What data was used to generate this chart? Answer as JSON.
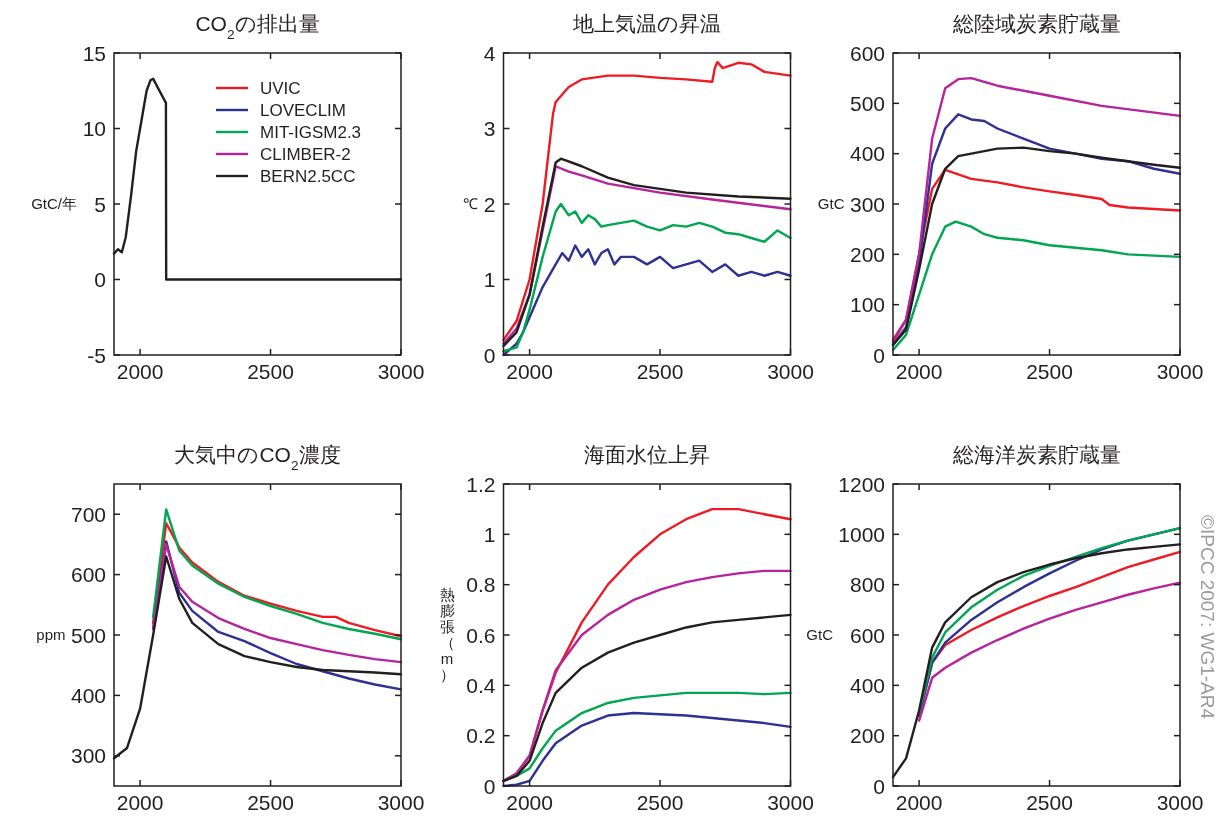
{
  "chart_data": [
    {
      "type": "line",
      "title": "CO$_{2}$の排出量",
      "ylabel": "GtC/年",
      "xlim": [
        1900,
        3000
      ],
      "xticks": [
        2000,
        2500,
        3000
      ],
      "ylim": [
        -5,
        15
      ],
      "yticks": [
        -5,
        0,
        5,
        10,
        15
      ],
      "legend": "top right",
      "series": [
        {
          "name": "UVIC",
          "color": "#ed1c24"
        },
        {
          "name": "LOVECLIM",
          "color": "#2e3192"
        },
        {
          "name": "MIT-IGSM2.3",
          "color": "#00a651"
        },
        {
          "name": "CLIMBER-2",
          "color": "#b5249b"
        },
        {
          "name": "BERN2.5CC",
          "color": "#231f20",
          "x": [
            1900,
            1915,
            1930,
            1945,
            1965,
            1985,
            2005,
            2025,
            2040,
            2050,
            2065,
            2099,
            2100,
            3000
          ],
          "values": [
            1.7,
            2.0,
            1.8,
            2.8,
            5.5,
            8.5,
            10.5,
            12.5,
            13.2,
            13.3,
            12.8,
            11.7,
            0,
            0
          ]
        }
      ]
    },
    {
      "type": "line",
      "title": "地上気温の昇温",
      "ylabel": "℃",
      "xlim": [
        1900,
        3000
      ],
      "xticks": [
        2000,
        2500,
        3000
      ],
      "ylim": [
        0,
        4
      ],
      "yticks": [
        0,
        1,
        2,
        3,
        4
      ],
      "series": [
        {
          "color": "#ed1c24",
          "x": [
            1900,
            1950,
            2000,
            2050,
            2090,
            2100,
            2150,
            2200,
            2300,
            2400,
            2500,
            2600,
            2700,
            2710,
            2720,
            2740,
            2800,
            2850,
            2900,
            3000
          ],
          "values": [
            0.2,
            0.45,
            1.0,
            2.0,
            3.2,
            3.35,
            3.55,
            3.65,
            3.7,
            3.7,
            3.67,
            3.65,
            3.62,
            3.8,
            3.88,
            3.8,
            3.87,
            3.85,
            3.75,
            3.7
          ]
        },
        {
          "color": "#2e3192",
          "x": [
            1900,
            1950,
            1975,
            2000,
            2050,
            2100,
            2125,
            2150,
            2175,
            2200,
            2225,
            2250,
            2275,
            2300,
            2325,
            2350,
            2400,
            2450,
            2500,
            2550,
            2600,
            2650,
            2700,
            2750,
            2800,
            2850,
            2900,
            2950,
            3000
          ],
          "values": [
            0.0,
            0.15,
            0.3,
            0.5,
            0.9,
            1.2,
            1.35,
            1.25,
            1.45,
            1.3,
            1.4,
            1.2,
            1.35,
            1.4,
            1.2,
            1.3,
            1.3,
            1.2,
            1.3,
            1.15,
            1.2,
            1.25,
            1.1,
            1.2,
            1.05,
            1.1,
            1.05,
            1.1,
            1.05
          ]
        },
        {
          "color": "#00a651",
          "x": [
            1900,
            1950,
            1975,
            2000,
            2050,
            2100,
            2120,
            2150,
            2175,
            2200,
            2225,
            2250,
            2275,
            2300,
            2350,
            2400,
            2450,
            2500,
            2550,
            2600,
            2650,
            2700,
            2750,
            2800,
            2850,
            2900,
            2950,
            3000
          ],
          "values": [
            0.05,
            0.1,
            0.3,
            0.6,
            1.3,
            1.9,
            2.0,
            1.85,
            1.9,
            1.75,
            1.85,
            1.8,
            1.7,
            1.72,
            1.75,
            1.78,
            1.7,
            1.65,
            1.72,
            1.7,
            1.75,
            1.7,
            1.62,
            1.6,
            1.55,
            1.5,
            1.65,
            1.55
          ]
        },
        {
          "color": "#b5249b",
          "x": [
            1900,
            1950,
            2000,
            2050,
            2100,
            2150,
            2200,
            2300,
            2500,
            2700,
            3000
          ],
          "values": [
            0.15,
            0.35,
            0.8,
            1.65,
            2.5,
            2.43,
            2.38,
            2.27,
            2.15,
            2.06,
            1.93
          ]
        },
        {
          "color": "#231f20",
          "x": [
            1900,
            1950,
            2000,
            2050,
            2100,
            2120,
            2200,
            2300,
            2400,
            2500,
            2600,
            2800,
            3000
          ],
          "values": [
            0.12,
            0.3,
            0.8,
            1.7,
            2.55,
            2.6,
            2.5,
            2.35,
            2.25,
            2.2,
            2.15,
            2.1,
            2.07
          ]
        }
      ]
    },
    {
      "type": "line",
      "title": "総陸域炭素貯蔵量",
      "ylabel": "GtC",
      "xlim": [
        1900,
        3000
      ],
      "xticks": [
        2000,
        2500,
        3000
      ],
      "ylim": [
        0,
        600
      ],
      "yticks": [
        0,
        100,
        200,
        300,
        400,
        500,
        600
      ],
      "series": [
        {
          "color": "#ed1c24",
          "x": [
            1900,
            1950,
            2000,
            2050,
            2100,
            2200,
            2300,
            2400,
            2500,
            2600,
            2700,
            2730,
            2800,
            2900,
            3000
          ],
          "values": [
            30,
            70,
            200,
            330,
            368,
            350,
            343,
            333,
            325,
            318,
            310,
            298,
            293,
            290,
            287
          ]
        },
        {
          "color": "#2e3192",
          "x": [
            1900,
            1950,
            2000,
            2050,
            2100,
            2150,
            2200,
            2250,
            2300,
            2400,
            2500,
            2600,
            2700,
            2800,
            2900,
            3000
          ],
          "values": [
            20,
            55,
            180,
            380,
            450,
            478,
            468,
            465,
            450,
            430,
            410,
            400,
            390,
            385,
            370,
            360
          ]
        },
        {
          "color": "#00a651",
          "x": [
            1900,
            1950,
            2000,
            2050,
            2100,
            2140,
            2200,
            2250,
            2300,
            2400,
            2500,
            2700,
            2800,
            3000
          ],
          "values": [
            10,
            40,
            120,
            200,
            255,
            265,
            255,
            240,
            233,
            228,
            218,
            208,
            200,
            195
          ]
        },
        {
          "color": "#b5249b",
          "x": [
            1900,
            1950,
            2000,
            2050,
            2100,
            2150,
            2200,
            2300,
            2500,
            2700,
            3000
          ],
          "values": [
            25,
            70,
            200,
            430,
            530,
            548,
            550,
            535,
            515,
            495,
            475
          ]
        },
        {
          "color": "#231f20",
          "x": [
            1900,
            1950,
            2000,
            2050,
            2100,
            2150,
            2200,
            2300,
            2400,
            2500,
            2600,
            2700,
            2800,
            2900,
            3000
          ],
          "values": [
            20,
            50,
            170,
            300,
            370,
            395,
            400,
            410,
            412,
            405,
            400,
            392,
            385,
            378,
            372
          ]
        }
      ]
    },
    {
      "type": "line",
      "title": "大気中のCO$_{2}$濃度",
      "ylabel": "ppm",
      "xlim": [
        1900,
        3000
      ],
      "xticks": [
        2000,
        2500,
        3000
      ],
      "ylim": [
        250,
        750
      ],
      "yticks": [
        300,
        400,
        500,
        600,
        700
      ],
      "series": [
        {
          "color": "#ed1c24",
          "x": [
            2050,
            2100,
            2150,
            2200,
            2300,
            2400,
            2500,
            2600,
            2700,
            2750,
            2800,
            2900,
            3000
          ],
          "values": [
            520,
            685,
            645,
            620,
            588,
            565,
            552,
            540,
            530,
            530,
            520,
            508,
            498
          ]
        },
        {
          "color": "#2e3192",
          "x": [
            2050,
            2100,
            2150,
            2200,
            2300,
            2400,
            2500,
            2600,
            2700,
            2800,
            2900,
            3000
          ],
          "values": [
            510,
            655,
            570,
            540,
            505,
            490,
            470,
            452,
            440,
            428,
            418,
            410
          ]
        },
        {
          "color": "#00a651",
          "x": [
            2050,
            2100,
            2150,
            2200,
            2300,
            2400,
            2500,
            2600,
            2700,
            2800,
            2900,
            3000
          ],
          "values": [
            530,
            708,
            640,
            615,
            585,
            563,
            548,
            535,
            520,
            510,
            502,
            493
          ]
        },
        {
          "color": "#b5249b",
          "x": [
            2050,
            2100,
            2150,
            2200,
            2300,
            2400,
            2500,
            2600,
            2700,
            2800,
            2900,
            3000
          ],
          "values": [
            510,
            650,
            580,
            555,
            528,
            510,
            495,
            485,
            475,
            467,
            460,
            455
          ]
        },
        {
          "color": "#231f20",
          "x": [
            1900,
            1950,
            2000,
            2050,
            2100,
            2150,
            2200,
            2300,
            2400,
            2500,
            2600,
            2700,
            2800,
            2900,
            3000
          ],
          "values": [
            296,
            313,
            378,
            500,
            630,
            560,
            520,
            485,
            465,
            455,
            447,
            442,
            440,
            438,
            435
          ]
        }
      ]
    },
    {
      "type": "line",
      "title": "海面水位上昇",
      "ylabel": "熱膨張（m）",
      "xlim": [
        1900,
        3000
      ],
      "xticks": [
        2000,
        2500,
        3000
      ],
      "ylim": [
        0,
        1.2
      ],
      "yticks": [
        0,
        0.2,
        0.4,
        0.6,
        0.8,
        1,
        1.2
      ],
      "series": [
        {
          "color": "#ed1c24",
          "x": [
            1900,
            1950,
            2000,
            2050,
            2100,
            2150,
            2200,
            2300,
            2400,
            2500,
            2600,
            2700,
            2750,
            2800,
            2900,
            3000
          ],
          "values": [
            0.02,
            0.05,
            0.12,
            0.3,
            0.45,
            0.55,
            0.65,
            0.8,
            0.91,
            1.0,
            1.06,
            1.1,
            1.1,
            1.1,
            1.08,
            1.06
          ]
        },
        {
          "color": "#2e3192",
          "x": [
            1900,
            1950,
            2000,
            2050,
            2100,
            2200,
            2300,
            2400,
            2500,
            2600,
            2700,
            2800,
            2900,
            3000
          ],
          "values": [
            0,
            0.005,
            0.02,
            0.1,
            0.17,
            0.24,
            0.28,
            0.29,
            0.285,
            0.28,
            0.27,
            0.26,
            0.25,
            0.235
          ]
        },
        {
          "color": "#00a651",
          "x": [
            1900,
            1950,
            2000,
            2050,
            2100,
            2200,
            2300,
            2400,
            2500,
            2600,
            2800,
            2900,
            3000
          ],
          "values": [
            0.02,
            0.04,
            0.07,
            0.15,
            0.22,
            0.29,
            0.33,
            0.35,
            0.36,
            0.37,
            0.37,
            0.365,
            0.37
          ]
        },
        {
          "color": "#b5249b",
          "x": [
            1900,
            1950,
            2000,
            2050,
            2100,
            2200,
            2300,
            2400,
            2500,
            2600,
            2700,
            2800,
            2900,
            3000
          ],
          "values": [
            0.02,
            0.05,
            0.12,
            0.3,
            0.46,
            0.6,
            0.68,
            0.74,
            0.78,
            0.81,
            0.83,
            0.845,
            0.855,
            0.855
          ]
        },
        {
          "color": "#231f20",
          "x": [
            1900,
            1950,
            2000,
            2050,
            2100,
            2200,
            2300,
            2400,
            2500,
            2600,
            2700,
            2800,
            2900,
            3000
          ],
          "values": [
            0.02,
            0.04,
            0.1,
            0.25,
            0.37,
            0.47,
            0.53,
            0.57,
            0.6,
            0.63,
            0.65,
            0.66,
            0.67,
            0.68
          ]
        }
      ]
    },
    {
      "type": "line",
      "title": "総海洋炭素貯蔵量",
      "ylabel": "GtC",
      "xlim": [
        1900,
        3000
      ],
      "xticks": [
        2000,
        2500,
        3000
      ],
      "ylim": [
        0,
        1200
      ],
      "yticks": [
        0,
        200,
        400,
        600,
        800,
        1000,
        1200
      ],
      "annotations": [
        "©IPCC 2007: WG1-AR4"
      ],
      "series": [
        {
          "color": "#ed1c24",
          "x": [
            2000,
            2050,
            2100,
            2200,
            2300,
            2400,
            2500,
            2600,
            2700,
            2800,
            2900,
            3000
          ],
          "values": [
            280,
            490,
            560,
            620,
            670,
            715,
            755,
            790,
            830,
            870,
            900,
            930
          ]
        },
        {
          "color": "#2e3192",
          "x": [
            2000,
            2050,
            2100,
            2200,
            2300,
            2400,
            2500,
            2600,
            2700,
            2800,
            2900,
            3000
          ],
          "values": [
            280,
            490,
            570,
            660,
            730,
            790,
            845,
            895,
            940,
            975,
            1000,
            1025
          ]
        },
        {
          "color": "#00a651",
          "x": [
            2000,
            2050,
            2100,
            2200,
            2300,
            2400,
            2500,
            2600,
            2700,
            2800,
            2900,
            3000
          ],
          "values": [
            290,
            510,
            610,
            710,
            780,
            835,
            875,
            910,
            945,
            975,
            1000,
            1025
          ]
        },
        {
          "color": "#b5249b",
          "x": [
            2000,
            2050,
            2100,
            2200,
            2300,
            2400,
            2500,
            2600,
            2700,
            2800,
            2900,
            3000
          ],
          "values": [
            260,
            430,
            470,
            530,
            580,
            625,
            665,
            700,
            730,
            760,
            785,
            808
          ]
        },
        {
          "color": "#231f20",
          "x": [
            1900,
            1950,
            2000,
            2050,
            2100,
            2200,
            2300,
            2400,
            2500,
            2600,
            2700,
            2800,
            2900,
            3000
          ],
          "values": [
            35,
            110,
            300,
            550,
            650,
            750,
            810,
            850,
            880,
            905,
            925,
            940,
            950,
            960
          ]
        }
      ]
    }
  ]
}
